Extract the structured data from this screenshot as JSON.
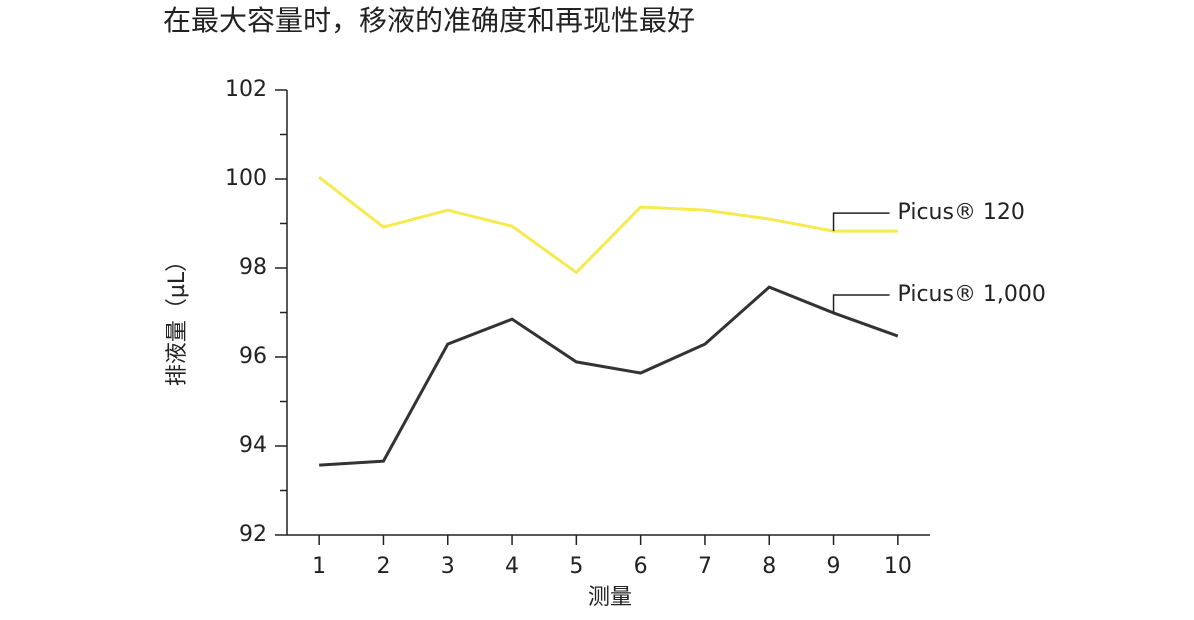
{
  "chart_data": {
    "type": "line",
    "title": "在最大容量时，移液的准确度和再现性最好",
    "xlabel": "测量",
    "ylabel": "排液量（µL）",
    "x": [
      1,
      2,
      3,
      4,
      5,
      6,
      7,
      8,
      9,
      10
    ],
    "xlim": [
      0.5,
      10.5
    ],
    "xticks": [
      1,
      2,
      3,
      4,
      5,
      6,
      7,
      8,
      9,
      10
    ],
    "ylim": [
      92,
      102
    ],
    "yticks": [
      92,
      94,
      96,
      98,
      100,
      102
    ],
    "yminor_ticks": [
      93,
      95,
      97,
      99,
      101
    ],
    "grid": false,
    "series": [
      {
        "name": "Picus® 120",
        "color": "#f5ea4f",
        "values": [
          100.04,
          98.92,
          99.3,
          98.94,
          97.9,
          99.37,
          99.3,
          99.1,
          98.83,
          98.83
        ]
      },
      {
        "name": "Picus® 1,000",
        "color": "#333333",
        "values": [
          93.57,
          93.66,
          96.29,
          96.85,
          95.89,
          95.64,
          96.29,
          97.57,
          96.99,
          96.47
        ]
      }
    ]
  }
}
